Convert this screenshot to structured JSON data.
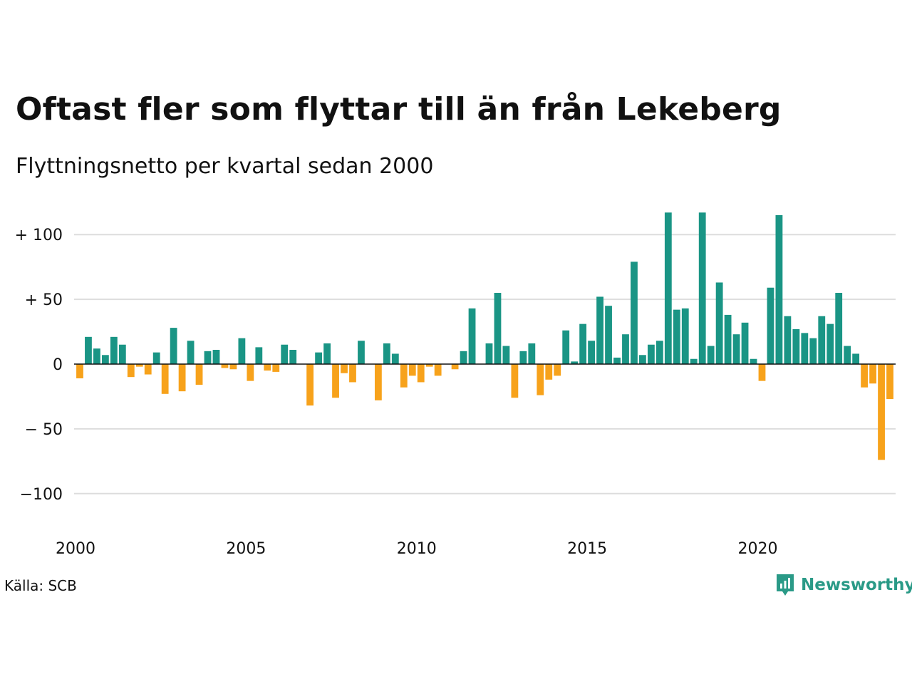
{
  "title": "Oftast fler som flyttar till än från Lekeberg",
  "subtitle": "Flyttningsnetto per kvartal sedan 2000",
  "source": "Källa: SCB",
  "brand": "Newsworthy",
  "colors": {
    "positive": "#1a9585",
    "negative": "#f7a21b",
    "grid": "#dddddd",
    "zero": "#111111"
  },
  "chart_data": {
    "type": "bar",
    "x_start": "2000 Q1",
    "x_ticks": [
      "2000",
      "2005",
      "2010",
      "2015",
      "2020"
    ],
    "y_ticks": [
      {
        "value": 100,
        "label": "+ 100"
      },
      {
        "value": 50,
        "label": "+  50"
      },
      {
        "value": 0,
        "label": "0"
      },
      {
        "value": -50,
        "label": "− 50"
      },
      {
        "value": -100,
        "label": "−100"
      }
    ],
    "ylim": [
      -115,
      118
    ],
    "values": [
      -11,
      21,
      12,
      7,
      21,
      15,
      -10,
      -2,
      -8,
      9,
      -23,
      28,
      -21,
      18,
      -16,
      10,
      11,
      -3,
      -4,
      20,
      -13,
      13,
      -5,
      -6,
      15,
      11,
      0,
      -32,
      9,
      16,
      -26,
      -7,
      -14,
      18,
      0,
      -28,
      16,
      8,
      -18,
      -9,
      -14,
      -2,
      -9,
      0,
      -4,
      10,
      43,
      0,
      16,
      55,
      14,
      -26,
      10,
      16,
      -24,
      -12,
      -9,
      26,
      2,
      31,
      18,
      52,
      45,
      5,
      23,
      79,
      7,
      15,
      18,
      117,
      42,
      43,
      4,
      117,
      14,
      63,
      38,
      23,
      32,
      4,
      -13,
      59,
      115,
      37,
      27,
      24,
      20,
      37,
      31,
      55,
      14,
      8,
      -18,
      -15,
      -74,
      -27
    ],
    "grid": true,
    "legend": "none"
  }
}
